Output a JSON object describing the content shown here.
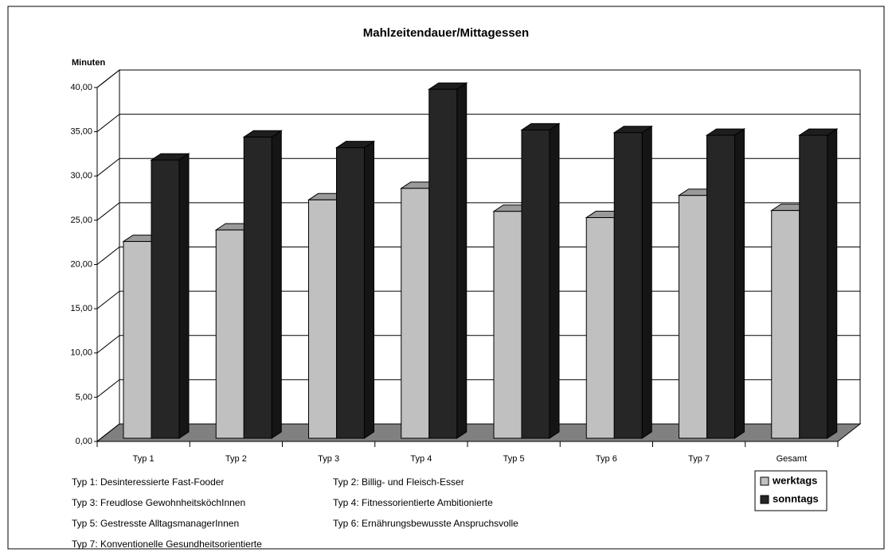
{
  "chart_data": {
    "type": "bar3d",
    "title": "Mahlzeitendauer/Mittagessen",
    "y_label": "Minuten",
    "categories": [
      "Typ 1",
      "Typ 2",
      "Typ 3",
      "Typ 4",
      "Typ 5",
      "Typ 6",
      "Typ 7",
      "Gesamt"
    ],
    "series": [
      {
        "name": "werktags",
        "color": "#c0c0c0",
        "values": [
          22.6,
          23.9,
          27.3,
          28.6,
          26.0,
          25.3,
          27.8,
          26.1
        ]
      },
      {
        "name": "sonntags",
        "color": "#262626",
        "values": [
          31.8,
          34.4,
          33.2,
          39.8,
          35.2,
          34.9,
          34.6,
          34.6
        ]
      }
    ],
    "ylim": [
      0,
      40
    ],
    "yticks": [
      {
        "value": 0,
        "label": "0,00"
      },
      {
        "value": 5,
        "label": "5,00"
      },
      {
        "value": 10,
        "label": "10,00"
      },
      {
        "value": 15,
        "label": "15,00"
      },
      {
        "value": 20,
        "label": "20,00"
      },
      {
        "value": 25,
        "label": "25,00"
      },
      {
        "value": 30,
        "label": "30,00"
      },
      {
        "value": 35,
        "label": "35,00"
      },
      {
        "value": 40,
        "label": "40,00"
      }
    ],
    "grid": true,
    "legend_position": "right",
    "notes": [
      "Typ 1: Desinteressierte Fast-Fooder",
      "Typ 2: Billig- und Fleisch-Esser",
      "Typ 3: Freudlose GewohnheitsköchInnen",
      "Typ 4: Fitnessorientierte Ambitionierte",
      "Typ 5: Gestresste AlltagsmanagerInnen",
      "Typ 6: Ernährungsbewusste Anspruchsvolle",
      "Typ 7: Konventionelle Gesundheitsorientierte"
    ]
  }
}
